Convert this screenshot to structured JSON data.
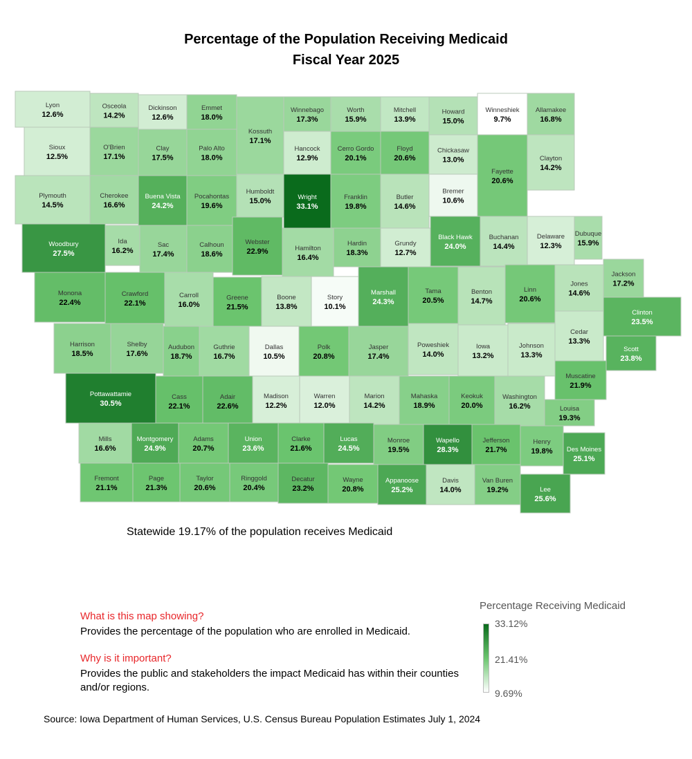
{
  "title_line1": "Percentage of the Population Receiving Medicaid",
  "title_line2": "Fiscal Year 2025",
  "statewide": "Statewide 19.17% of the population receives Medicaid",
  "info": {
    "q1": "What is this map showing?",
    "a1": "Provides the percentage of the population who are enrolled in Medicaid.",
    "q2": "Why is it important?",
    "a2": "Provides the public and stakeholders the impact Medicaid has within their counties and/or regions."
  },
  "source": "Source: Iowa Department of Human Services, U.S. Census Bureau Population Estimates July 1, 2024",
  "legend": {
    "title": "Percentage Receiving Medicaid",
    "max_label": "33.12%",
    "mid_label": "21.41%",
    "min_label": "9.69%",
    "max": 33.12,
    "mid": 21.41,
    "min": 9.69,
    "colors": [
      "#ffffff",
      "#6cc56f",
      "#0a6b1c"
    ]
  },
  "counties": [
    {
      "name": "Lyon",
      "value": 12.6
    },
    {
      "name": "Osceola",
      "value": 14.2
    },
    {
      "name": "Dickinson",
      "value": 12.6
    },
    {
      "name": "Emmet",
      "value": 18.0
    },
    {
      "name": "Kossuth",
      "value": 17.1
    },
    {
      "name": "Winnebago",
      "value": 17.3
    },
    {
      "name": "Worth",
      "value": 15.9
    },
    {
      "name": "Mitchell",
      "value": 13.9
    },
    {
      "name": "Howard",
      "value": 15.0
    },
    {
      "name": "Winneshiek",
      "value": 9.7
    },
    {
      "name": "Allamakee",
      "value": 16.8
    },
    {
      "name": "Sioux",
      "value": 12.5
    },
    {
      "name": "O'Brien",
      "value": 17.1
    },
    {
      "name": "Clay",
      "value": 17.5
    },
    {
      "name": "Palo Alto",
      "value": 18.0
    },
    {
      "name": "Hancock",
      "value": 12.9
    },
    {
      "name": "Cerro Gordo",
      "value": 20.1
    },
    {
      "name": "Floyd",
      "value": 20.6
    },
    {
      "name": "Chickasaw",
      "value": 13.0
    },
    {
      "name": "Fayette",
      "value": 20.6
    },
    {
      "name": "Clayton",
      "value": 14.2
    },
    {
      "name": "Plymouth",
      "value": 14.5
    },
    {
      "name": "Cherokee",
      "value": 16.6
    },
    {
      "name": "Buena Vista",
      "value": 24.2
    },
    {
      "name": "Pocahontas",
      "value": 19.6
    },
    {
      "name": "Humboldt",
      "value": 15.0
    },
    {
      "name": "Wright",
      "value": 33.1
    },
    {
      "name": "Franklin",
      "value": 19.8
    },
    {
      "name": "Butler",
      "value": 14.6
    },
    {
      "name": "Bremer",
      "value": 10.6
    },
    {
      "name": "Black Hawk",
      "value": 24.0
    },
    {
      "name": "Buchanan",
      "value": 14.4
    },
    {
      "name": "Delaware",
      "value": 12.3
    },
    {
      "name": "Dubuque",
      "value": 15.9
    },
    {
      "name": "Woodbury",
      "value": 27.5
    },
    {
      "name": "Ida",
      "value": 16.2
    },
    {
      "name": "Sac",
      "value": 17.4
    },
    {
      "name": "Calhoun",
      "value": 18.6
    },
    {
      "name": "Webster",
      "value": 22.9
    },
    {
      "name": "Hamilton",
      "value": 16.4
    },
    {
      "name": "Hardin",
      "value": 18.3
    },
    {
      "name": "Grundy",
      "value": 12.7
    },
    {
      "name": "Tama",
      "value": 20.5
    },
    {
      "name": "Benton",
      "value": 14.7
    },
    {
      "name": "Linn",
      "value": 20.6
    },
    {
      "name": "Jones",
      "value": 14.6
    },
    {
      "name": "Jackson",
      "value": 17.2
    },
    {
      "name": "Monona",
      "value": 22.4
    },
    {
      "name": "Crawford",
      "value": 22.1
    },
    {
      "name": "Carroll",
      "value": 16.0
    },
    {
      "name": "Greene",
      "value": 21.5
    },
    {
      "name": "Boone",
      "value": 13.8
    },
    {
      "name": "Story",
      "value": 10.1
    },
    {
      "name": "Marshall",
      "value": 24.3
    },
    {
      "name": "Clinton",
      "value": 23.5
    },
    {
      "name": "Cedar",
      "value": 13.3
    },
    {
      "name": "Harrison",
      "value": 18.5
    },
    {
      "name": "Shelby",
      "value": 17.6
    },
    {
      "name": "Audubon",
      "value": 18.7
    },
    {
      "name": "Guthrie",
      "value": 16.7
    },
    {
      "name": "Dallas",
      "value": 10.5
    },
    {
      "name": "Polk",
      "value": 20.8
    },
    {
      "name": "Jasper",
      "value": 17.4
    },
    {
      "name": "Poweshiek",
      "value": 14.0
    },
    {
      "name": "Iowa",
      "value": 13.2
    },
    {
      "name": "Johnson",
      "value": 13.3
    },
    {
      "name": "Scott",
      "value": 23.8
    },
    {
      "name": "Muscatine",
      "value": 21.9
    },
    {
      "name": "Pottawattamie",
      "value": 30.5
    },
    {
      "name": "Cass",
      "value": 22.1
    },
    {
      "name": "Adair",
      "value": 22.6
    },
    {
      "name": "Madison",
      "value": 12.2
    },
    {
      "name": "Warren",
      "value": 12.0
    },
    {
      "name": "Marion",
      "value": 14.2
    },
    {
      "name": "Mahaska",
      "value": 18.9
    },
    {
      "name": "Keokuk",
      "value": 20.0
    },
    {
      "name": "Washington",
      "value": 16.2
    },
    {
      "name": "Louisa",
      "value": 19.3
    },
    {
      "name": "Mills",
      "value": 16.6
    },
    {
      "name": "Montgomery",
      "value": 24.9
    },
    {
      "name": "Adams",
      "value": 20.7
    },
    {
      "name": "Union",
      "value": 23.6
    },
    {
      "name": "Clarke",
      "value": 21.6
    },
    {
      "name": "Lucas",
      "value": 24.5
    },
    {
      "name": "Monroe",
      "value": 19.5
    },
    {
      "name": "Wapello",
      "value": 28.3
    },
    {
      "name": "Jefferson",
      "value": 21.7
    },
    {
      "name": "Henry",
      "value": 19.8
    },
    {
      "name": "Des Moines",
      "value": 25.1
    },
    {
      "name": "Fremont",
      "value": 21.1
    },
    {
      "name": "Page",
      "value": 21.3
    },
    {
      "name": "Taylor",
      "value": 20.6
    },
    {
      "name": "Ringgold",
      "value": 20.4
    },
    {
      "name": "Decatur",
      "value": 23.2
    },
    {
      "name": "Wayne",
      "value": 20.8
    },
    {
      "name": "Appanoose",
      "value": 25.2
    },
    {
      "name": "Davis",
      "value": 14.0
    },
    {
      "name": "Van Buren",
      "value": 19.2
    },
    {
      "name": "Lee",
      "value": 25.6
    }
  ]
}
